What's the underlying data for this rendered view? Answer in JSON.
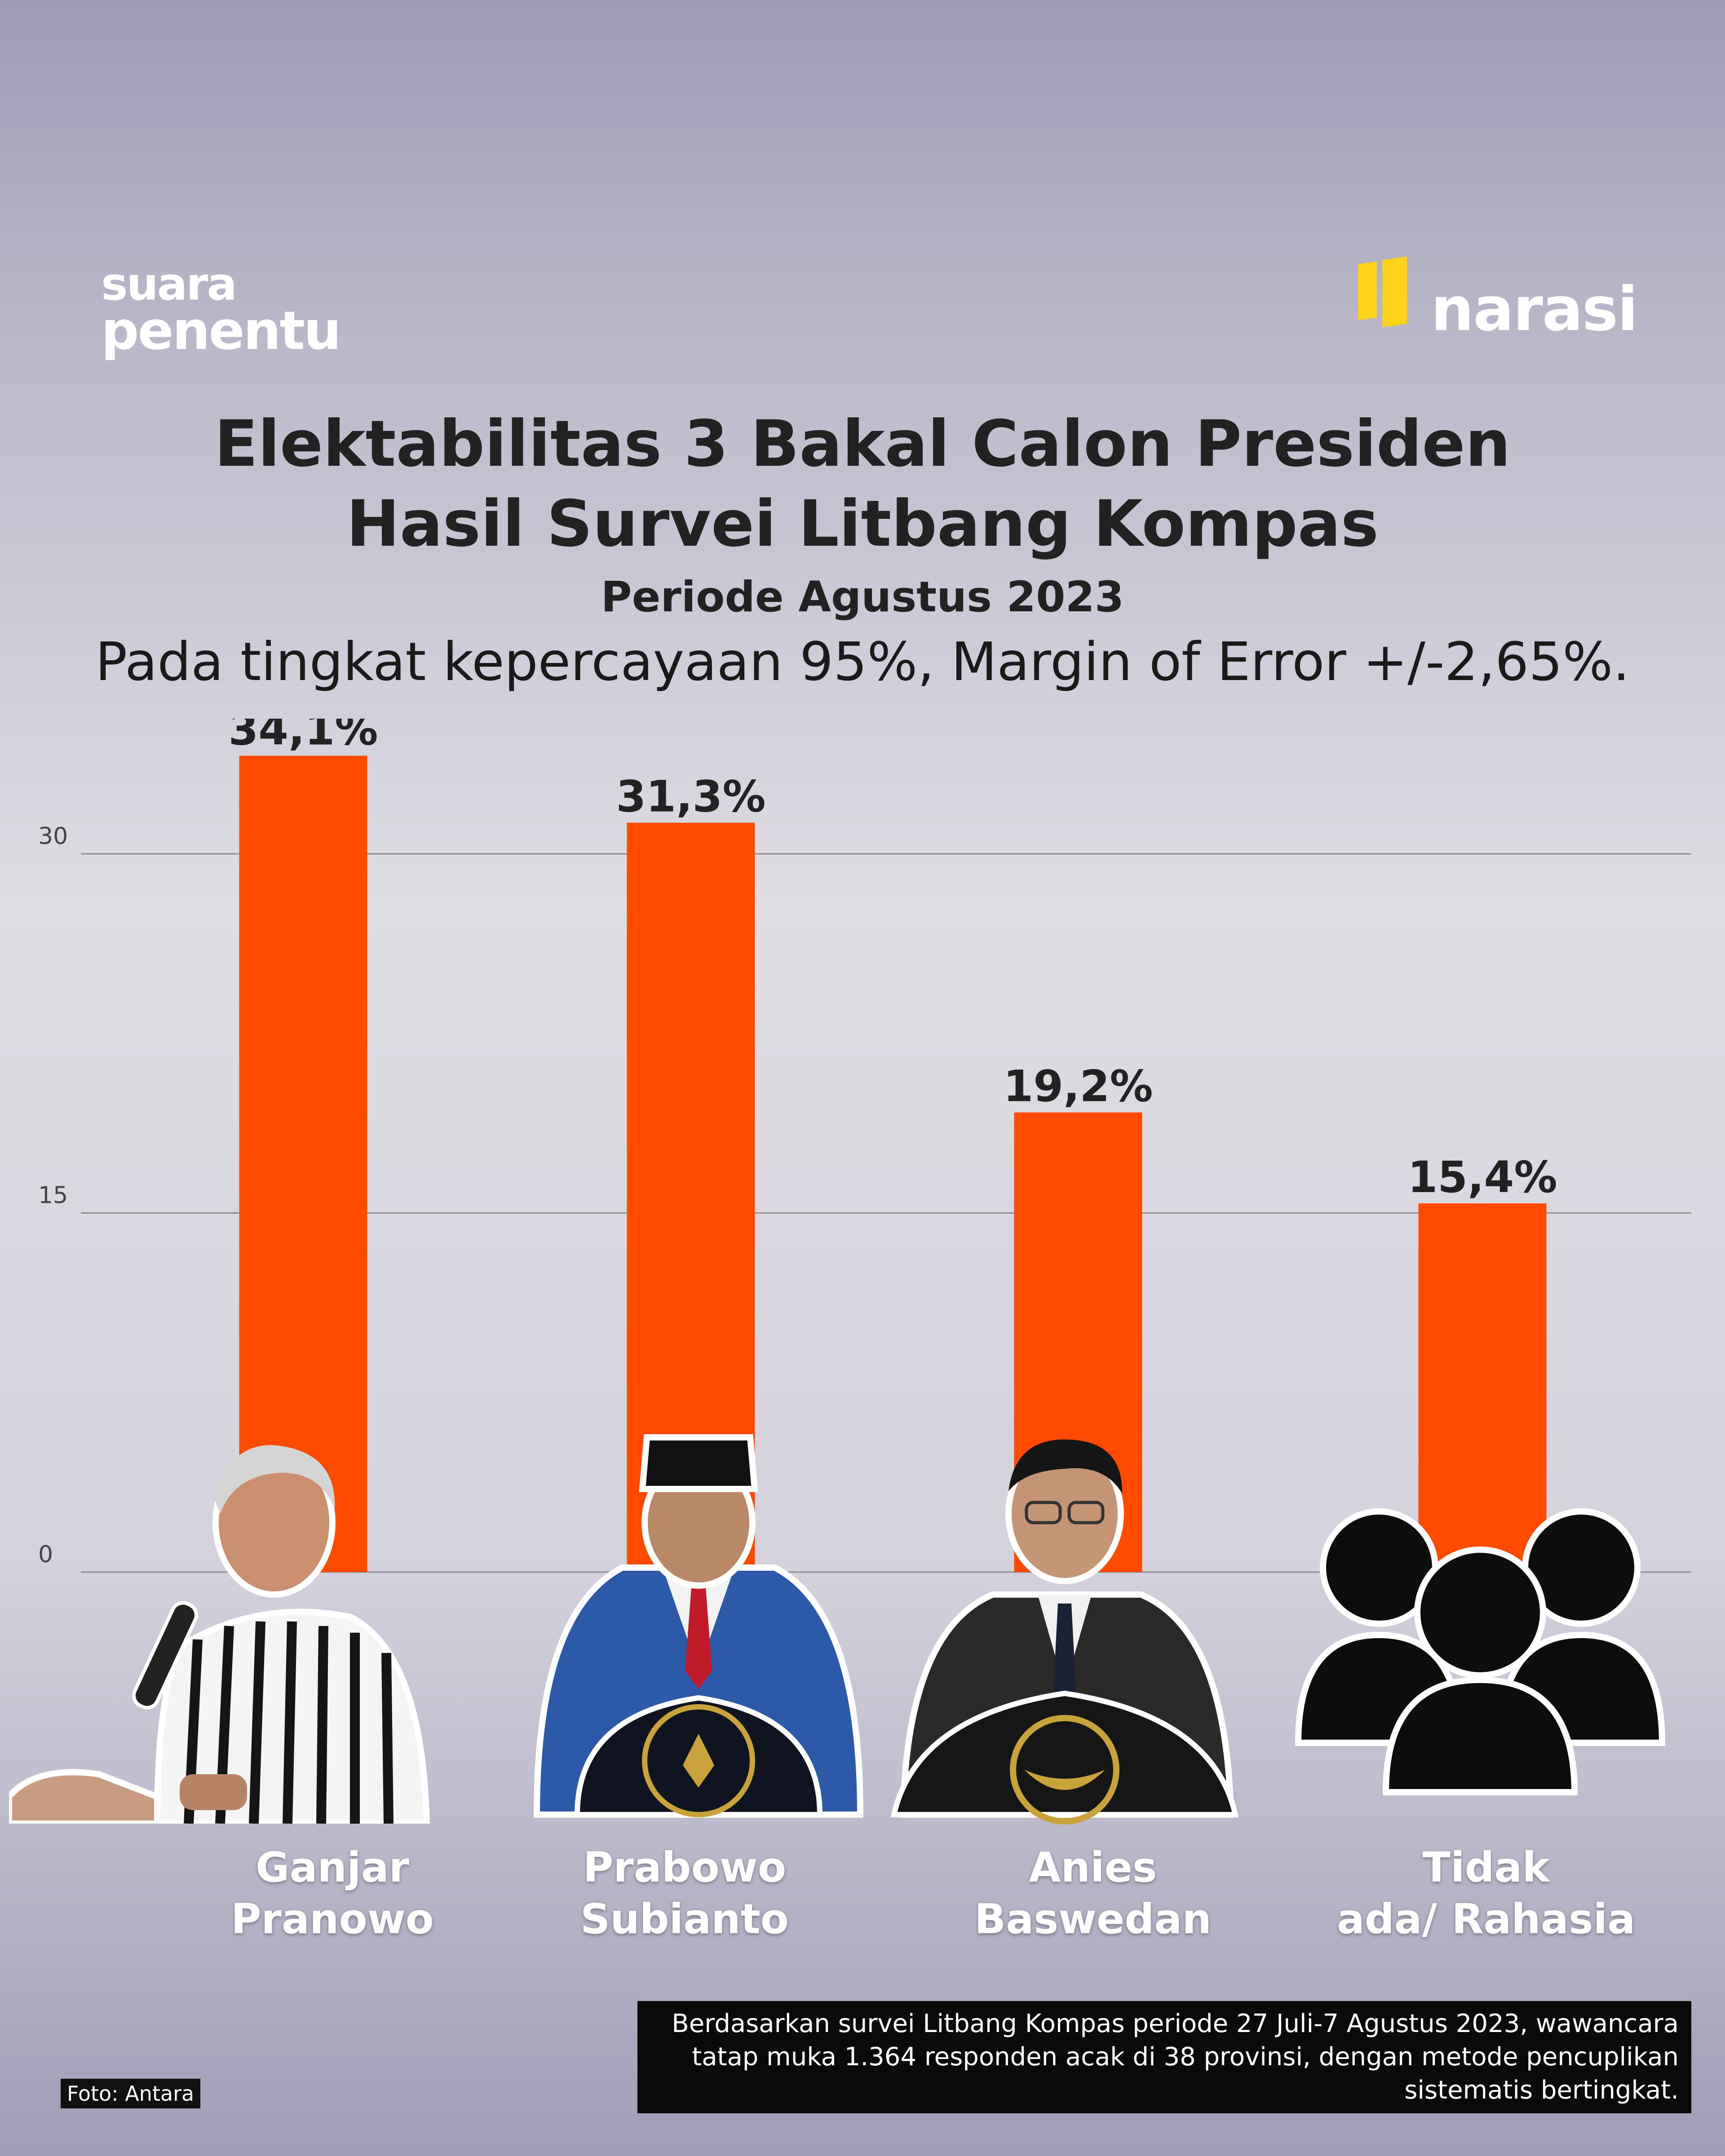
{
  "brand": {
    "left_line1": "suara",
    "left_line2": "penentu",
    "right": "narasi",
    "accent": "#ffd31a"
  },
  "title_line1": "Elektabilitas 3 Bakal Calon Presiden",
  "title_line2": "Hasil Survei Litbang Kompas",
  "subtitle": "Periode Agustus 2023",
  "margin_note": "Pada tingkat kepercayaan 95%, Margin of Error +/-2,65%.",
  "photo_credit": "Foto: Antara",
  "footnote": "Berdasarkan survei Litbang Kompas periode 27 Juli-7 Agustus 2023, wawancara tatap muka 1.364 responden acak di 38 provinsi, dengan metode pencuplikan sistematis bertingkat.",
  "colors": {
    "bar": "#ff4a00",
    "grid": "#8f8f8f",
    "text": "#222222"
  },
  "icons": [
    "ganjar-photo",
    "prabowo-photo",
    "anies-photo",
    "people-group-icon"
  ],
  "chart_data": {
    "type": "bar",
    "categories": [
      "Ganjar Pranowo",
      "Prabowo Subianto",
      "Anies Baswedan",
      "Tidak ada/ Rahasia"
    ],
    "values": [
      34.1,
      31.3,
      19.2,
      15.4
    ],
    "value_labels": [
      "34,1%",
      "31,3%",
      "19,2%",
      "15,4%"
    ],
    "y_ticks": [
      0,
      15,
      30
    ],
    "ylim": [
      0,
      35
    ],
    "grid": true,
    "title": "Elektabilitas 3 Bakal Calon Presiden"
  }
}
